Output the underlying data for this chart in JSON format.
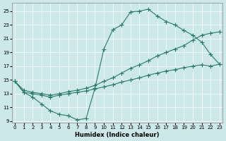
{
  "xlabel": "Humidex (Indice chaleur)",
  "bg_color": "#cce8e8",
  "line_color": "#2a7a6a",
  "xlim": [
    -0.3,
    23.3
  ],
  "ylim": [
    8.8,
    26.2
  ],
  "xticks": [
    0,
    1,
    2,
    3,
    4,
    5,
    6,
    7,
    8,
    9,
    10,
    11,
    12,
    13,
    14,
    15,
    16,
    17,
    18,
    19,
    20,
    21,
    22,
    23
  ],
  "yticks": [
    9,
    11,
    13,
    15,
    17,
    19,
    21,
    23,
    25
  ],
  "curve1_x": [
    0,
    1,
    2,
    3,
    4,
    5,
    6,
    7,
    8,
    9,
    10,
    11,
    12,
    13,
    14,
    15,
    16,
    17,
    18,
    19,
    20,
    21,
    22,
    23
  ],
  "curve1_y": [
    14.8,
    13.2,
    12.5,
    11.5,
    10.5,
    10.0,
    9.8,
    9.2,
    9.4,
    13.8,
    19.5,
    22.3,
    23.0,
    24.9,
    25.0,
    25.3,
    24.3,
    23.5,
    23.0,
    22.2,
    21.5,
    20.5,
    18.7,
    17.3
  ],
  "curve2_x": [
    0,
    1,
    2,
    3,
    4,
    5,
    6,
    7,
    8,
    9,
    10,
    11,
    12,
    13,
    14,
    15,
    16,
    17,
    18,
    19,
    20,
    21,
    22,
    23
  ],
  "curve2_y": [
    14.8,
    13.5,
    13.2,
    13.0,
    12.8,
    13.0,
    13.3,
    13.5,
    13.8,
    14.2,
    14.8,
    15.3,
    16.0,
    16.7,
    17.2,
    17.8,
    18.5,
    19.0,
    19.5,
    20.0,
    20.8,
    21.5,
    21.8,
    22.0
  ],
  "curve3_x": [
    0,
    1,
    2,
    3,
    4,
    5,
    6,
    7,
    8,
    9,
    10,
    11,
    12,
    13,
    14,
    15,
    16,
    17,
    18,
    19,
    20,
    21,
    22,
    23
  ],
  "curve3_y": [
    14.8,
    13.2,
    13.0,
    12.8,
    12.5,
    12.8,
    13.0,
    13.2,
    13.4,
    13.7,
    14.0,
    14.3,
    14.7,
    15.0,
    15.3,
    15.7,
    16.0,
    16.3,
    16.5,
    16.8,
    17.0,
    17.2,
    17.0,
    17.3
  ]
}
